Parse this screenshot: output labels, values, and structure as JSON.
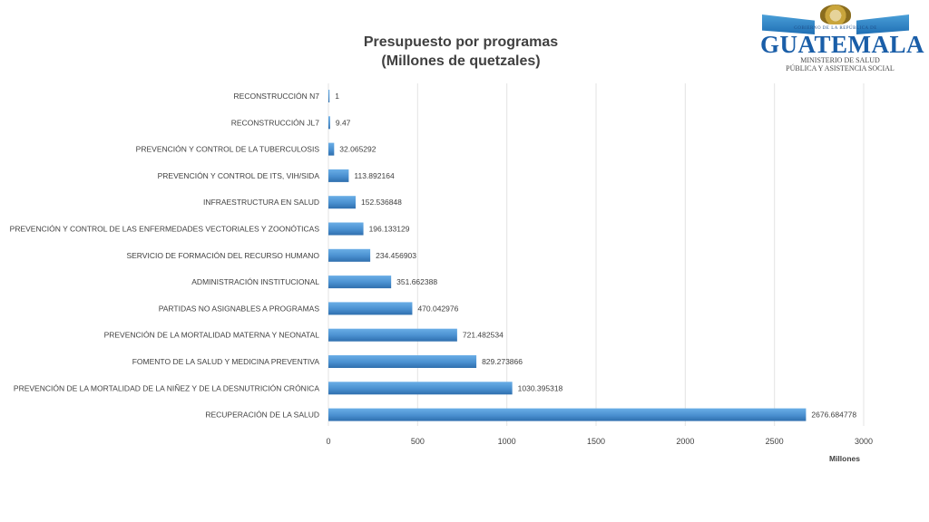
{
  "logo": {
    "gov_line": "GOBIERNO DE LA REPÚBLICA DE",
    "brand": "GUATEMALA",
    "ministry_line1": "MINISTERIO DE SALUD",
    "ministry_line2": "PÚBLICA Y ASISTENCIA SOCIAL",
    "crest_icon": "coat-of-arms-icon",
    "colors": {
      "brand": "#1a5ea8",
      "flag": "#4a9fd8",
      "crest": "#c9a53c"
    }
  },
  "chart_data": {
    "type": "bar",
    "orientation": "horizontal",
    "title_line1": "Presupuesto por programas",
    "title_line2": "(Millones de quetzales)",
    "xlabel": "Millones",
    "ylabel": "",
    "xlim": [
      0,
      3000
    ],
    "x_ticks": [
      0,
      500,
      1000,
      1500,
      2000,
      2500,
      3000
    ],
    "grid": true,
    "legend": "none",
    "bar_color": "#4a90d0",
    "categories": [
      "RECONSTRUCCIÓN N7",
      "RECONSTRUCCIÓN JL7",
      "PREVENCIÓN Y CONTROL DE LA TUBERCULOSIS",
      "PREVENCIÓN Y CONTROL DE ITS, VIH/SIDA",
      "INFRAESTRUCTURA EN SALUD",
      "PREVENCIÓN Y CONTROL DE LAS ENFERMEDADES VECTORIALES Y ZOONÓTICAS",
      "SERVICIO DE FORMACIÓN DEL RECURSO HUMANO",
      "ADMINISTRACIÓN INSTITUCIONAL",
      "PARTIDAS NO ASIGNABLES A PROGRAMAS",
      "PREVENCIÓN DE LA MORTALIDAD MATERNA Y NEONATAL",
      "FOMENTO DE LA SALUD Y MEDICINA PREVENTIVA",
      "PREVENCIÓN DE LA MORTALIDAD DE LA NIÑEZ Y DE LA DESNUTRICIÓN CRÓNICA",
      "RECUPERACIÓN DE LA SALUD"
    ],
    "values": [
      1,
      9.47,
      32.065292,
      113.892164,
      152.536848,
      196.133129,
      234.456903,
      351.662388,
      470.042976,
      721.482534,
      829.273866,
      1030.395318,
      2676.684778
    ],
    "data_labels": [
      "1",
      "9.47",
      "32.065292",
      "113.892164",
      "152.536848",
      "196.133129",
      "234.456903",
      "351.662388",
      "470.042976",
      "721.482534",
      "829.273866",
      "1030.395318",
      "2676.684778"
    ]
  }
}
